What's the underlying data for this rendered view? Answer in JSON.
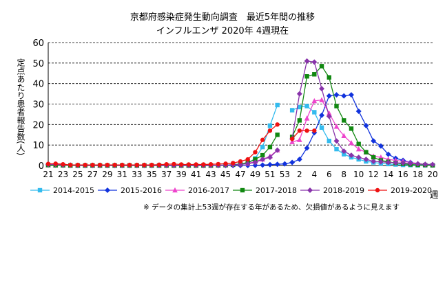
{
  "header": {
    "title_line1": "京都府感染症発生動向調査　最近5年間の推移",
    "title_line2": "インフルエンザ  2020年  4週現在"
  },
  "chart_data": {
    "type": "line",
    "ylabel": "定点あたり患者報告数(人)",
    "xlabel": "週",
    "ylim": [
      0,
      60
    ],
    "yticks": [
      0,
      10,
      20,
      30,
      40,
      50,
      60
    ],
    "grid": "horizontal-dashed",
    "legend_position": "bottom",
    "x": [
      21,
      22,
      23,
      24,
      25,
      26,
      27,
      28,
      29,
      30,
      31,
      32,
      33,
      34,
      35,
      36,
      37,
      38,
      39,
      40,
      41,
      42,
      43,
      44,
      45,
      46,
      47,
      48,
      49,
      50,
      51,
      52,
      53,
      1,
      2,
      3,
      4,
      5,
      6,
      7,
      8,
      9,
      10,
      11,
      12,
      13,
      14,
      15,
      16,
      17,
      18,
      19,
      20
    ],
    "xtick_labels": [
      "21",
      "23",
      "25",
      "27",
      "29",
      "31",
      "33",
      "35",
      "37",
      "39",
      "41",
      "43",
      "45",
      "47",
      "49",
      "51",
      "53",
      "2",
      "4",
      "6",
      "8",
      "10",
      "12",
      "14",
      "16",
      "18",
      "20"
    ],
    "series": [
      {
        "name": "2014-2015",
        "color": "#33bbee",
        "marker": "square",
        "values": [
          0.3,
          0.2,
          0.1,
          0.1,
          0,
          0,
          0,
          0,
          0,
          0,
          0,
          0,
          0,
          0,
          0,
          0,
          0,
          0,
          0,
          0,
          0,
          0,
          0,
          0.1,
          0.2,
          0.3,
          0.5,
          1,
          3.5,
          9,
          19.5,
          29.5,
          null,
          27,
          28.5,
          29,
          26,
          18.5,
          12,
          8,
          5.5,
          4,
          3,
          2,
          1.5,
          1,
          0.7,
          0.5,
          0.3,
          0.2,
          0.1,
          0.1,
          0.1
        ]
      },
      {
        "name": "2015-2016",
        "color": "#1133dd",
        "marker": "diamond",
        "values": [
          0.3,
          0.2,
          0.1,
          0.1,
          0,
          0,
          0,
          0,
          0,
          0,
          0,
          0,
          0,
          0,
          0,
          0,
          0,
          0,
          0,
          0,
          0,
          0,
          0,
          0,
          0,
          0,
          0,
          0,
          0.1,
          0.2,
          0.4,
          0.6,
          0.8,
          1.5,
          3,
          8.5,
          16,
          24.5,
          34,
          34.5,
          34,
          34.5,
          26.5,
          19.5,
          12,
          9.5,
          5.5,
          3.5,
          2.5,
          1.5,
          0.8,
          0.5,
          0.3
        ]
      },
      {
        "name": "2016-2017",
        "color": "#ee44cc",
        "marker": "triangle",
        "values": [
          0.2,
          0.1,
          0.1,
          0,
          0,
          0,
          0,
          0,
          0,
          0,
          0,
          0,
          0,
          0,
          0,
          0,
          0,
          0,
          0,
          0,
          0,
          0,
          0,
          0.1,
          0.2,
          0.4,
          0.6,
          1,
          2,
          3,
          4.5,
          7.5,
          null,
          11.5,
          12.5,
          23,
          31.5,
          32,
          25.5,
          19,
          14.5,
          11,
          8,
          6.5,
          4.5,
          4,
          3,
          2.5,
          2,
          1.5,
          1,
          0.5,
          0.3
        ]
      },
      {
        "name": "2017-2018",
        "color": "#118811",
        "marker": "square",
        "values": [
          0.2,
          0.1,
          0.1,
          0,
          0,
          0,
          0,
          0,
          0,
          0,
          0,
          0,
          0,
          0,
          0,
          0,
          0,
          0,
          0,
          0,
          0,
          0,
          0,
          0.1,
          0.2,
          0.4,
          0.7,
          1.5,
          3,
          5,
          9,
          15,
          null,
          14,
          22,
          43.5,
          44.5,
          48.5,
          43,
          29,
          22,
          18,
          10.5,
          6.5,
          4,
          2.5,
          1.8,
          1.2,
          0.8,
          0.5,
          0.3,
          0.2,
          0.1
        ]
      },
      {
        "name": "2018-2019",
        "color": "#8833aa",
        "marker": "diamond",
        "values": [
          0.5,
          0.6,
          0.3,
          0.2,
          0.1,
          0.1,
          0.1,
          0.1,
          0.1,
          0.1,
          0.1,
          0.1,
          0.1,
          0.1,
          0.1,
          0.1,
          0.1,
          0.1,
          0.1,
          0.1,
          0.1,
          0.1,
          0.1,
          0.1,
          0.2,
          0.3,
          0.5,
          0.9,
          1.5,
          3,
          4,
          7.5,
          null,
          13,
          35,
          51,
          50.5,
          37.5,
          24,
          12,
          7,
          5,
          4,
          3,
          2,
          1.8,
          1.5,
          1.3,
          1.2,
          1,
          0.8,
          0.6,
          0.5
        ]
      },
      {
        "name": "2019-2020",
        "color": "#ee1111",
        "marker": "circle",
        "values": [
          0.8,
          0.9,
          0.6,
          0.3,
          0.3,
          0.3,
          0.3,
          0.3,
          0.3,
          0.3,
          0.3,
          0.3,
          0.3,
          0.3,
          0.3,
          0.4,
          0.6,
          0.7,
          0.5,
          0.5,
          0.5,
          0.5,
          0.6,
          0.7,
          0.9,
          1.2,
          2,
          3,
          6.5,
          12.5,
          17,
          20,
          null,
          13,
          17,
          17,
          17,
          null,
          null,
          null,
          null,
          null,
          null,
          null,
          null,
          null,
          null,
          null,
          null,
          null,
          null,
          null,
          null
        ]
      }
    ],
    "annotation": "※ データの集計上53週が存在する年があるため、欠損値があるように見えます"
  }
}
